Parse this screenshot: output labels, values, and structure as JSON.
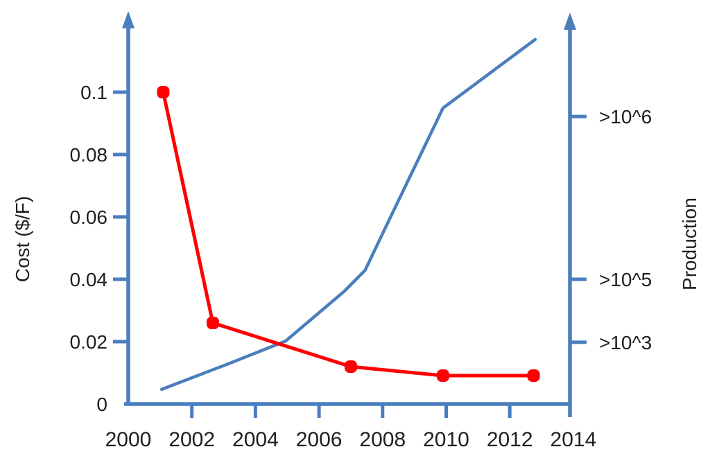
{
  "chart_data": {
    "type": "line",
    "title": "",
    "grid": false,
    "legend": "none",
    "background": "#ffffff",
    "colors": {
      "axis": "#4a7ebd",
      "cost_series": "#fe0000",
      "production_series": "#4a7ebd",
      "text": "#1f1f1f"
    },
    "x_axis": {
      "label": "",
      "xlim": [
        2000,
        2014.5
      ],
      "ticks": [
        {
          "label": "2000",
          "year": 2000,
          "mark": false
        },
        {
          "label": "2002",
          "year": 2002,
          "mark": true
        },
        {
          "label": "2004",
          "year": 2004,
          "mark": true
        },
        {
          "label": "2006",
          "year": 2006,
          "mark": true
        },
        {
          "label": "2008",
          "year": 2008,
          "mark": true
        },
        {
          "label": "2010",
          "year": 2010,
          "mark": true
        },
        {
          "label": "2012",
          "year": 2012,
          "mark": true
        },
        {
          "label": "2014",
          "year": 2014,
          "mark": false
        }
      ]
    },
    "left_axis": {
      "label": "Cost ($/F)",
      "ylim": [
        0,
        0.125
      ],
      "ticks": [
        {
          "label": "0.1",
          "value": 0.1,
          "mark": true
        },
        {
          "label": "0.08",
          "value": 0.08,
          "mark": true
        },
        {
          "label": "0.06",
          "value": 0.06,
          "mark": true
        },
        {
          "label": "0.04",
          "value": 0.04,
          "mark": true
        },
        {
          "label": "0.02",
          "value": 0.02,
          "mark": true
        },
        {
          "label": "0",
          "value": 0,
          "mark": false
        }
      ]
    },
    "right_axis": {
      "label": "Production",
      "ticks": [
        {
          "label": ">10^6",
          "pos": 0.0922
        },
        {
          "label": ">10^5",
          "pos": 0.04
        },
        {
          "label": ">10^3",
          "pos": 0.0198
        }
      ]
    },
    "series": [
      {
        "name": "Cost ($/F)",
        "color": "#fe0000",
        "marker": "rounded-square",
        "points": [
          [
            2001.1,
            0.1
          ],
          [
            2002.66,
            0.026
          ],
          [
            2007.0,
            0.012
          ],
          [
            2009.9,
            0.0091
          ],
          [
            2012.75,
            0.0091
          ]
        ]
      },
      {
        "name": "Production",
        "color": "#4a7ebd",
        "marker": "none",
        "points": [
          [
            2001.05,
            0.0047
          ],
          [
            2003.2,
            0.0131
          ],
          [
            2004.95,
            0.0202
          ],
          [
            2006.8,
            0.0362
          ],
          [
            2007.45,
            0.0429
          ],
          [
            2008.2,
            0.0589
          ],
          [
            2009.9,
            0.0949
          ],
          [
            2012.8,
            0.1169
          ]
        ]
      }
    ]
  }
}
